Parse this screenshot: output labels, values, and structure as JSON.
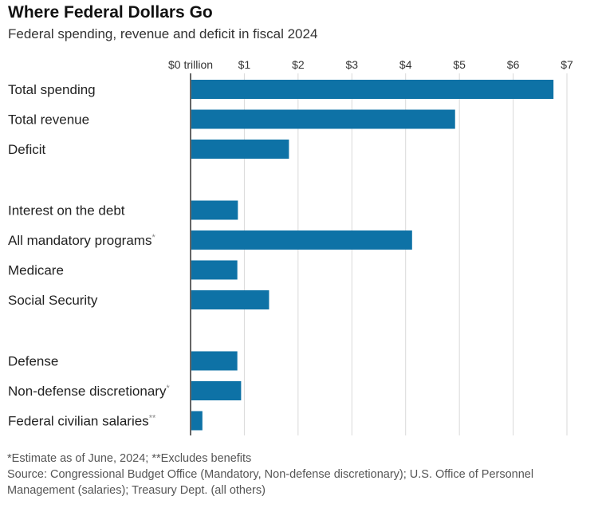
{
  "title": "Where Federal Dollars Go",
  "subtitle": "Federal spending, revenue and deficit in fiscal 2024",
  "chart_data": {
    "type": "bar",
    "orientation": "horizontal",
    "xlim": [
      0,
      7
    ],
    "ticks": [
      0,
      1,
      2,
      3,
      4,
      5,
      6,
      7
    ],
    "tick_labels": [
      "$0 trillion",
      "$1",
      "$2",
      "$3",
      "$4",
      "$5",
      "$6",
      "$7"
    ],
    "bar_color": "#0e72a6",
    "grid": true,
    "groups": [
      {
        "items": [
          {
            "label": "Total spending",
            "suffix": "",
            "value": 6.75
          },
          {
            "label": "Total revenue",
            "suffix": "",
            "value": 4.92
          },
          {
            "label": "Deficit",
            "suffix": "",
            "value": 1.83
          }
        ]
      },
      {
        "items": [
          {
            "label": "Interest on the debt",
            "suffix": "",
            "value": 0.88
          },
          {
            "label": "All mandatory programs",
            "suffix": "*",
            "value": 4.12
          },
          {
            "label": "Medicare",
            "suffix": "",
            "value": 0.87
          },
          {
            "label": "Social Security",
            "suffix": "",
            "value": 1.46
          }
        ]
      },
      {
        "items": [
          {
            "label": "Defense",
            "suffix": "",
            "value": 0.87
          },
          {
            "label": "Non-defense discretionary",
            "suffix": "*",
            "value": 0.94
          },
          {
            "label": "Federal civilian salaries",
            "suffix": "**",
            "value": 0.22
          }
        ]
      }
    ]
  },
  "notes": {
    "footnote": "*Estimate as of June, 2024; **Excludes benefits",
    "source": "Source: Congressional Budget Office (Mandatory, Non-defense discretionary); U.S. Office of Personnel Management (salaries); Treasury Dept. (all others)"
  }
}
